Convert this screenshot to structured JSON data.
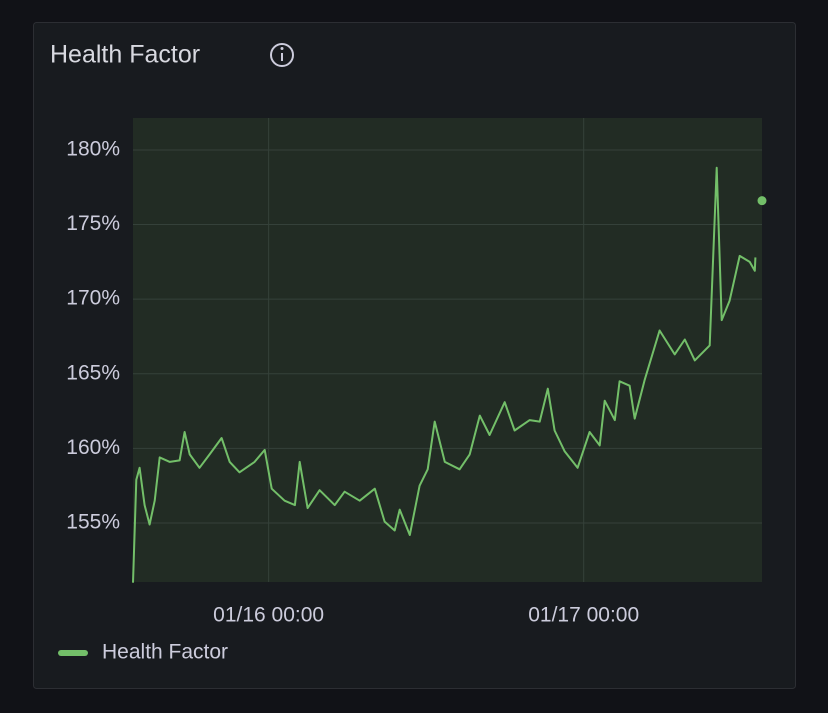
{
  "chart_data": {
    "type": "line",
    "title": "Health Factor",
    "x": [
      "01/15 13:40",
      "01/15 13:55",
      "01/15 14:10",
      "01/15 14:33",
      "01/15 14:56",
      "01/15 15:19",
      "01/15 15:42",
      "01/15 16:28",
      "01/15 17:13",
      "01/15 17:36",
      "01/15 17:59",
      "01/15 18:44",
      "01/15 19:30",
      "01/15 20:25",
      "01/15 21:02",
      "01/15 21:47",
      "01/15 22:56",
      "01/15 23:42",
      "01/16 00:14",
      "01/16 01:13",
      "01/16 02:00",
      "01/16 02:22",
      "01/16 02:58",
      "01/16 03:53",
      "01/16 05:02",
      "01/16 05:47",
      "01/16 06:56",
      "01/16 08:05",
      "01/16 08:50",
      "01/16 09:36",
      "01/16 09:59",
      "01/16 10:45",
      "01/16 11:30",
      "01/16 12:07",
      "01/16 12:39",
      "01/16 13:25",
      "01/16 14:33",
      "01/16 15:19",
      "01/16 16:05",
      "01/16 16:50",
      "01/16 17:59",
      "01/16 18:44",
      "01/16 19:53",
      "01/16 20:39",
      "01/16 21:16",
      "01/16 21:47",
      "01/16 22:33",
      "01/16 23:32",
      "01/17 00:27",
      "01/17 01:13",
      "01/17 01:36",
      "01/17 02:22",
      "01/17 02:44",
      "01/17 03:30",
      "01/17 03:53",
      "01/17 04:39",
      "01/17 05:47",
      "01/17 06:56",
      "01/17 07:42",
      "01/17 08:28",
      "01/17 09:36",
      "01/17 10:08",
      "01/17 10:31",
      "01/17 11:07",
      "01/17 11:53",
      "01/17 12:39",
      "01/17 13:02",
      "01/17 13:05",
      "01/17 13:20",
      "01/17 13:35"
    ],
    "series": [
      {
        "name": "Health Factor",
        "color": "#73bf69",
        "values": [
          151.0,
          157.9,
          158.7,
          156.2,
          154.9,
          156.5,
          159.4,
          159.1,
          159.2,
          161.1,
          159.6,
          158.7,
          159.6,
          160.7,
          159.1,
          158.4,
          159.1,
          159.9,
          157.3,
          156.5,
          156.2,
          159.1,
          156.0,
          157.2,
          156.2,
          157.1,
          156.5,
          157.3,
          155.1,
          154.5,
          155.9,
          154.2,
          157.5,
          158.6,
          161.8,
          159.1,
          158.6,
          159.6,
          162.2,
          160.9,
          163.1,
          161.2,
          161.9,
          161.8,
          164.0,
          161.2,
          159.8,
          158.7,
          161.1,
          160.2,
          163.2,
          161.9,
          164.5,
          164.2,
          162.0,
          164.6,
          167.9,
          166.3,
          167.3,
          165.9,
          166.9,
          178.8,
          168.6,
          169.9,
          172.9,
          172.5,
          171.9,
          172.8,
          null,
          176.6
        ]
      }
    ],
    "xlim": [
      "01/15 13:40",
      "01/17 13:35"
    ],
    "xticks": [
      "01/16 00:00",
      "01/17 00:00"
    ],
    "ylim": [
      151.05,
      182.14
    ],
    "yticks": [
      {
        "value": 155,
        "label": "155%"
      },
      {
        "value": 160,
        "label": "160%"
      },
      {
        "value": 165,
        "label": "165%"
      },
      {
        "value": 170,
        "label": "170%"
      },
      {
        "value": 175,
        "label": "175%"
      },
      {
        "value": 180,
        "label": "180%"
      }
    ],
    "grid": true
  }
}
